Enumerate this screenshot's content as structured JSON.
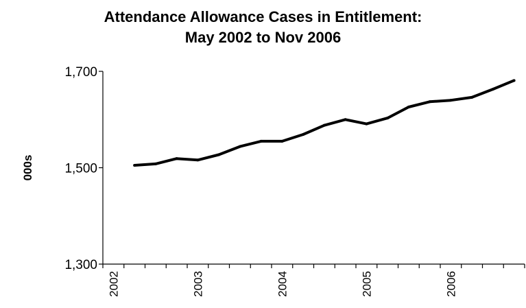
{
  "chart_data": {
    "type": "line",
    "title": [
      "Attendance Allowance Cases in Entitlement:",
      "May 2002 to Nov 2006"
    ],
    "xlabel": "",
    "ylabel": "000s",
    "ylim": [
      1300,
      1700
    ],
    "y_ticks": [
      1300,
      1500,
      1700
    ],
    "y_tick_labels": [
      "1,300",
      "1,500",
      "1,700"
    ],
    "x_tick_labels": [
      "2002",
      "2003",
      "2004",
      "2005",
      "2006"
    ],
    "grid": false,
    "legend": "none",
    "line_color": "#000000",
    "series": [
      {
        "x": [
          "May 2002",
          "Aug 2002",
          "Nov 2002",
          "Feb 2003",
          "May 2003",
          "Aug 2003",
          "Nov 2003",
          "Feb 2004",
          "May 2004",
          "Aug 2004",
          "Nov 2004",
          "Feb 2005",
          "May 2005",
          "Aug 2005",
          "Nov 2005",
          "Feb 2006",
          "May 2006",
          "Aug 2006",
          "Nov 2006"
        ],
        "values": [
          1505,
          1508,
          1519,
          1516,
          1527,
          1544,
          1555,
          1555,
          1569,
          1588,
          1600,
          1591,
          1603,
          1626,
          1637,
          1640,
          1646,
          1663,
          1681
        ]
      }
    ]
  }
}
